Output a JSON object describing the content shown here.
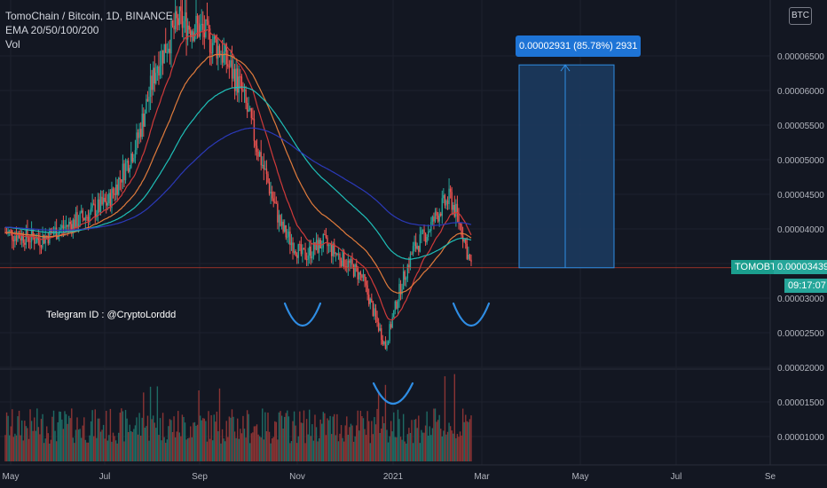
{
  "header": {
    "title": "TomoChain / Bitcoin, 1D, BINANCE",
    "indicator": "EMA 20/50/100/200",
    "volume": "Vol"
  },
  "currency_badge": "BTC",
  "measure": {
    "label": "0.00002931 (85.78%) 2931"
  },
  "price_tags": {
    "symbol": "TOMOBTC",
    "last_price": "0.00003439",
    "countdown": "09:17:07"
  },
  "note": "Telegram ID : @CryptoLorddd",
  "colors": {
    "background": "#131722",
    "up": "#26a69a",
    "down": "#ef5350",
    "ema20": "#d03a3a",
    "ema50": "#e07b3c",
    "ema100": "#1fbfb8",
    "ema200": "#2b39b8",
    "measure_fill": "#1c3a5e",
    "measure_line": "#2f8de4",
    "pattern_arcs": "#2f8de4"
  },
  "chart_data": {
    "type": "candlestick",
    "symbol": "TOMOBTC",
    "interval": "1D",
    "exchange": "BINANCE",
    "x_ticks": [
      "May",
      "Jul",
      "Sep",
      "Nov",
      "2021",
      "Mar",
      "May",
      "Jul",
      "Se"
    ],
    "y_ticks": [
      "0.00001000",
      "0.00001500",
      "0.00002000",
      "0.00002500",
      "0.00003000",
      "0.00003500",
      "0.00004000",
      "0.00004500",
      "0.00005000",
      "0.00005500",
      "0.00006000",
      "0.00006500"
    ],
    "ylim": [
      8.54e-06,
      7.175e-05
    ],
    "last_price": 3.439e-05,
    "price_trend": [
      {
        "month": "May 2020",
        "close": 3.95e-05
      },
      {
        "month": "Jun 2020",
        "close": 4.3e-05
      },
      {
        "month": "Jul 2020",
        "close": 5.6e-05
      },
      {
        "month": "Aug 2020",
        "close": 7.2e-05
      },
      {
        "month": "Sep 2020",
        "close": 6.6e-05
      },
      {
        "month": "Oct 2020",
        "close": 5e-05
      },
      {
        "month": "Nov 2020",
        "close": 3.5e-05
      },
      {
        "month": "Dec 2020",
        "close": 3.2e-05
      },
      {
        "month": "Jan 2021",
        "close": 2.6e-05
      },
      {
        "month": "Feb 2021",
        "close": 4.4e-05
      },
      {
        "month": "late Feb 2021",
        "close": 3.44e-05
      }
    ],
    "indicators": [
      "EMA 20",
      "EMA 50",
      "EMA 100",
      "EMA 200"
    ],
    "measure": {
      "from": 3.439e-05,
      "to": 6.37e-05,
      "change": 2.931e-05,
      "percent": 85.78,
      "ticks": 2931
    }
  }
}
